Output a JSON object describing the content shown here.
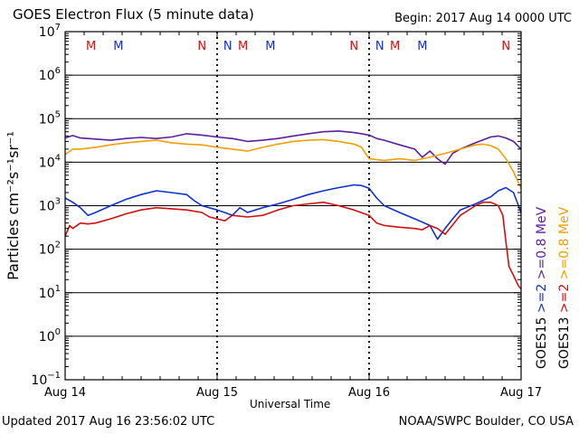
{
  "header": {
    "title": "GOES Electron Flux (5 minute data)",
    "begin": "Begin: 2017 Aug 14 0000 UTC"
  },
  "footer": {
    "updated": "Updated 2017 Aug 16 23:56:02 UTC",
    "credit": "NOAA/SWPC Boulder, CO USA"
  },
  "chart_data": {
    "type": "line",
    "title": "GOES Electron Flux (5 minute data)",
    "xlabel": "Universal Time",
    "ylabel": "Particles cm⁻²s⁻¹sr⁻¹",
    "x_unit": "days since 2017 Aug 14 0000 UTC",
    "xlim": [
      0,
      3
    ],
    "x_ticks": [
      {
        "x": 0,
        "label": "Aug 14"
      },
      {
        "x": 1,
        "label": "Aug 15"
      },
      {
        "x": 2,
        "label": "Aug 16"
      },
      {
        "x": 3,
        "label": "Aug 17"
      }
    ],
    "y_scale": "log",
    "ylim_exp": [
      -1,
      7
    ],
    "y_ticks": [
      {
        "exp": 7,
        "label": "10",
        "sup": "7"
      },
      {
        "exp": 6,
        "label": "10",
        "sup": "6"
      },
      {
        "exp": 5,
        "label": "10",
        "sup": "5"
      },
      {
        "exp": 4,
        "label": "10",
        "sup": "4"
      },
      {
        "exp": 3,
        "label": "10",
        "sup": "3"
      },
      {
        "exp": 2,
        "label": "10",
        "sup": "2"
      },
      {
        "exp": 1,
        "label": "10",
        "sup": "1"
      },
      {
        "exp": 0,
        "label": "10",
        "sup": "0"
      },
      {
        "exp": -1,
        "label": "10",
        "sup": "−1"
      }
    ],
    "grid": "horizontal lines at each decade",
    "threshold": {
      "value_exp": 3,
      "style": "dashed"
    },
    "markers": [
      {
        "x": 0.17,
        "label": "M",
        "color": "#d01010"
      },
      {
        "x": 0.35,
        "label": "M",
        "color": "#1030d0"
      },
      {
        "x": 0.9,
        "label": "N",
        "color": "#d01010"
      },
      {
        "x": 1.07,
        "label": "N",
        "color": "#1030d0"
      },
      {
        "x": 1.17,
        "label": "M",
        "color": "#d01010"
      },
      {
        "x": 1.35,
        "label": "M",
        "color": "#1030d0"
      },
      {
        "x": 1.9,
        "label": "N",
        "color": "#d01010"
      },
      {
        "x": 2.07,
        "label": "N",
        "color": "#1030d0"
      },
      {
        "x": 2.17,
        "label": "M",
        "color": "#d01010"
      },
      {
        "x": 2.35,
        "label": "M",
        "color": "#1030d0"
      },
      {
        "x": 2.9,
        "label": "N",
        "color": "#d01010"
      },
      {
        "x": 3.07,
        "label": "N",
        "color": "#1030d0"
      }
    ],
    "legend_placement": "right side, vertical text",
    "legend": [
      {
        "name": "GOES15 >=0.8 MeV",
        "color": "#5a1fa0"
      },
      {
        "name": "GOES13 >=0.8 MeV",
        "color": "#f0a000"
      },
      {
        "name": "GOES15 >=2 MeV",
        "color": "#1030d0"
      },
      {
        "name": "GOES13 >=2 MeV",
        "color": "#d01010"
      }
    ],
    "legend_labels": {
      "goes15": "GOES15",
      "goes13": "GOES13",
      "purple": ">=0.8 MeV",
      "orange": ">=0.8 MeV",
      "blue": ">=2",
      "red": ">=2"
    },
    "series": [
      {
        "name": "GOES15 >=0.8 MeV",
        "color": "#5a1fa0",
        "x": [
          0,
          0.05,
          0.1,
          0.2,
          0.3,
          0.4,
          0.5,
          0.6,
          0.7,
          0.8,
          0.9,
          1.0,
          1.1,
          1.2,
          1.3,
          1.4,
          1.5,
          1.6,
          1.7,
          1.8,
          1.9,
          1.95,
          2.0,
          2.05,
          2.1,
          2.2,
          2.3,
          2.35,
          2.4,
          2.45,
          2.5,
          2.55,
          2.6,
          2.7,
          2.8,
          2.85,
          2.9,
          2.95,
          3.0
        ],
        "y": [
          36000.0,
          41000.0,
          36000.0,
          34000.0,
          32000.0,
          35000.0,
          37000.0,
          35000.0,
          38000.0,
          45000.0,
          42000.0,
          38000.0,
          35000.0,
          30000.0,
          32000.0,
          35000.0,
          40000.0,
          45000.0,
          50000.0,
          52000.0,
          48000.0,
          45000.0,
          42000.0,
          35000.0,
          32000.0,
          25000.0,
          20000.0,
          13000.0,
          18000.0,
          12000.0,
          9000.0,
          16000.0,
          20000.0,
          28000.0,
          38000.0,
          40000.0,
          36000.0,
          30000.0,
          20000.0
        ]
      },
      {
        "name": "GOES13 >=0.8 MeV",
        "color": "#f0a000",
        "x": [
          0,
          0.05,
          0.1,
          0.2,
          0.3,
          0.4,
          0.5,
          0.6,
          0.7,
          0.8,
          0.9,
          1.0,
          1.1,
          1.2,
          1.3,
          1.4,
          1.5,
          1.6,
          1.7,
          1.8,
          1.9,
          1.95,
          2.0,
          2.1,
          2.2,
          2.3,
          2.4,
          2.5,
          2.6,
          2.7,
          2.75,
          2.8,
          2.85,
          2.9,
          2.95,
          3.0
        ],
        "y": [
          15000.0,
          20000.0,
          20000.0,
          22000.0,
          25000.0,
          28000.0,
          30000.0,
          32000.0,
          28000.0,
          26000.0,
          25000.0,
          22000.0,
          20000.0,
          18000.0,
          22000.0,
          26000.0,
          30000.0,
          32000.0,
          33000.0,
          30000.0,
          26000.0,
          22000.0,
          12000.0,
          11000.0,
          12000.0,
          11000.0,
          13000.0,
          16000.0,
          20000.0,
          25000.0,
          26000.0,
          24000.0,
          20000.0,
          12000.0,
          6000.0,
          2500.0
        ]
      },
      {
        "name": "GOES15 >=2 MeV",
        "color": "#1030d0",
        "x": [
          0,
          0.05,
          0.1,
          0.15,
          0.2,
          0.3,
          0.4,
          0.5,
          0.6,
          0.7,
          0.8,
          0.85,
          0.9,
          1.0,
          1.05,
          1.1,
          1.15,
          1.2,
          1.3,
          1.4,
          1.5,
          1.6,
          1.7,
          1.8,
          1.9,
          1.95,
          2.0,
          2.05,
          2.1,
          2.2,
          2.3,
          2.4,
          2.45,
          2.5,
          2.55,
          2.6,
          2.7,
          2.8,
          2.85,
          2.9,
          2.95,
          3.0
        ],
        "y": [
          1500.0,
          1200.0,
          900,
          600,
          700,
          1000.0,
          1400.0,
          1800.0,
          2200.0,
          2000.0,
          1800.0,
          1300.0,
          1000.0,
          800,
          700,
          600,
          900,
          700,
          900,
          1100.0,
          1400.0,
          1800.0,
          2200.0,
          2600.0,
          3000.0,
          2900.0,
          2500.0,
          1500.0,
          1000.0,
          700,
          500,
          350,
          170,
          300,
          500,
          800,
          1100.0,
          1600.0,
          2200.0,
          2600.0,
          2000.0,
          700
        ]
      },
      {
        "name": "GOES13 >=2 MeV",
        "color": "#d01010",
        "x": [
          0,
          0.03,
          0.05,
          0.1,
          0.15,
          0.2,
          0.3,
          0.4,
          0.5,
          0.6,
          0.7,
          0.8,
          0.9,
          0.95,
          1.0,
          1.05,
          1.1,
          1.2,
          1.3,
          1.4,
          1.5,
          1.6,
          1.7,
          1.8,
          1.9,
          2.0,
          2.05,
          2.1,
          2.2,
          2.3,
          2.35,
          2.4,
          2.45,
          2.5,
          2.6,
          2.7,
          2.75,
          2.8,
          2.85,
          2.88,
          2.9,
          2.92,
          2.95,
          2.98,
          3.0
        ],
        "y": [
          200,
          350,
          300,
          400,
          380,
          400,
          500,
          650,
          800,
          900,
          850,
          800,
          700,
          550,
          500,
          450,
          600,
          550,
          600,
          800,
          1000.0,
          1100.0,
          1200.0,
          1000.0,
          800,
          600,
          400,
          350,
          320,
          300,
          280,
          350,
          300,
          220,
          600,
          1000.0,
          1200.0,
          1200.0,
          1000.0,
          600,
          150,
          40,
          25,
          15,
          12
        ]
      }
    ]
  }
}
